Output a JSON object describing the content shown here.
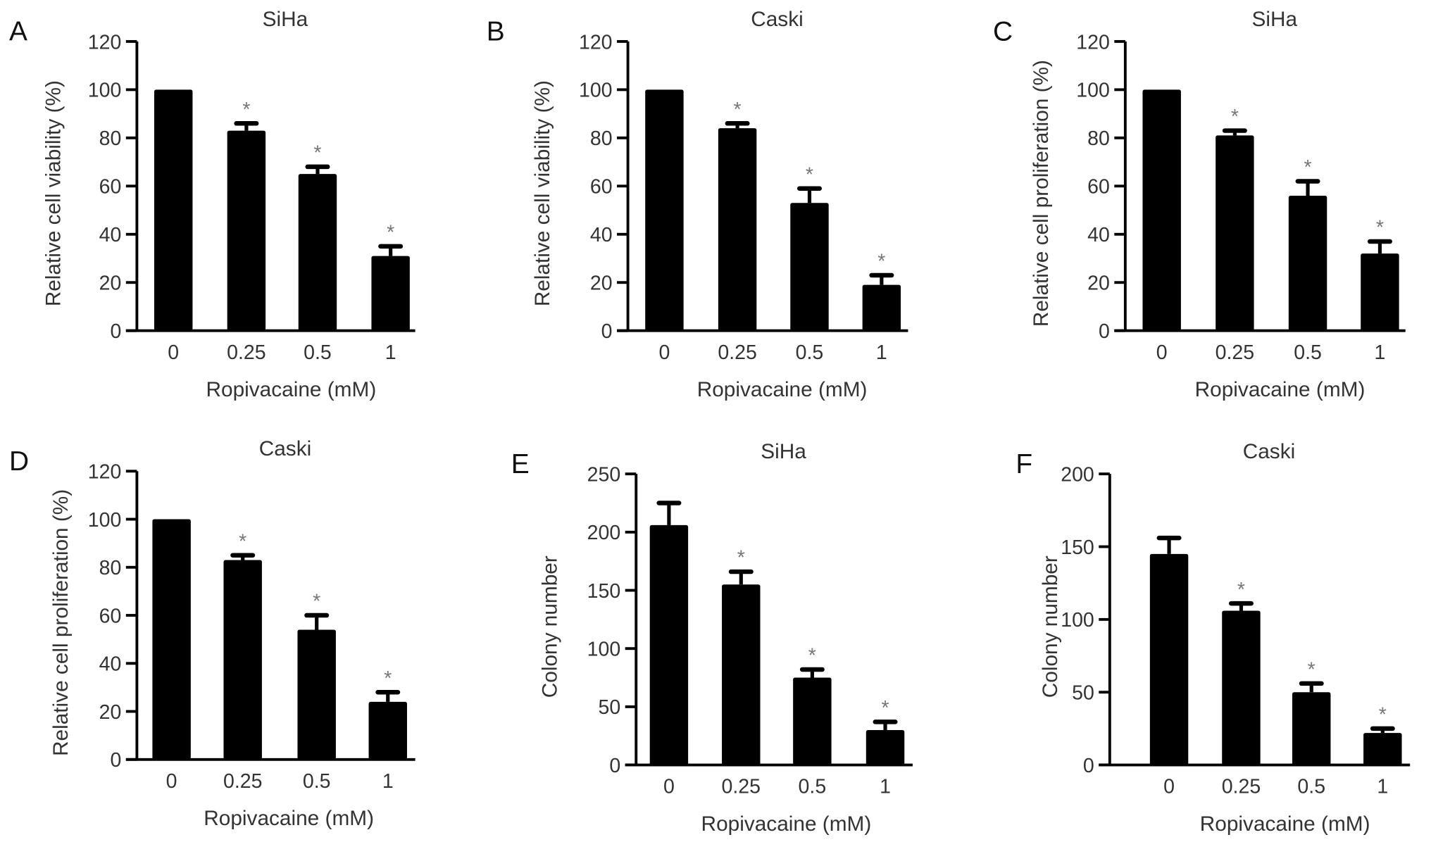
{
  "chart_data": [
    {
      "type": "bar",
      "panel": "A",
      "title": "SiHa",
      "xlabel": "Ropivacaine (mM)",
      "ylabel": "Relative cell viability (%)",
      "categories": [
        "0",
        "0.25",
        "0.5",
        "1"
      ],
      "values": [
        100,
        83,
        65,
        31
      ],
      "errors": [
        0,
        3,
        3,
        4
      ],
      "significance": [
        "",
        "*",
        "*",
        "*"
      ],
      "ylim": [
        0,
        120
      ],
      "yticks": [
        "0",
        "20",
        "40",
        "60",
        "80",
        "100",
        "120"
      ]
    },
    {
      "type": "bar",
      "panel": "B",
      "title": "Caski",
      "xlabel": "Ropivacaine (mM)",
      "ylabel": "Relative cell viability (%)",
      "categories": [
        "0",
        "0.25",
        "0.5",
        "1"
      ],
      "values": [
        100,
        84,
        53,
        19
      ],
      "errors": [
        0,
        2,
        6,
        4
      ],
      "significance": [
        "",
        "*",
        "*",
        "*"
      ],
      "ylim": [
        0,
        120
      ],
      "yticks": [
        "0",
        "20",
        "40",
        "60",
        "80",
        "100",
        "120"
      ]
    },
    {
      "type": "bar",
      "panel": "C",
      "title": "SiHa",
      "xlabel": "Ropivacaine (mM)",
      "ylabel": "Relative cell proliferation (%)",
      "categories": [
        "0",
        "0.25",
        "0.5",
        "1"
      ],
      "values": [
        100,
        81,
        56,
        32
      ],
      "errors": [
        0,
        2,
        6,
        5
      ],
      "significance": [
        "",
        "*",
        "*",
        "*"
      ],
      "ylim": [
        0,
        120
      ],
      "yticks": [
        "0",
        "20",
        "40",
        "60",
        "80",
        "100",
        "120"
      ]
    },
    {
      "type": "bar",
      "panel": "D",
      "title": "Caski",
      "xlabel": "Ropivacaine (mM)",
      "ylabel": "Relative cell proliferation (%)",
      "categories": [
        "0",
        "0.25",
        "0.5",
        "1"
      ],
      "values": [
        100,
        83,
        54,
        24
      ],
      "errors": [
        0,
        2,
        6,
        4
      ],
      "significance": [
        "",
        "*",
        "*",
        "*"
      ],
      "ylim": [
        0,
        120
      ],
      "yticks": [
        "0",
        "20",
        "40",
        "60",
        "80",
        "100",
        "120"
      ]
    },
    {
      "type": "bar",
      "panel": "E",
      "title": "SiHa",
      "xlabel": "Ropivacaine (mM)",
      "ylabel": "Colony number",
      "categories": [
        "0",
        "0.25",
        "0.5",
        "1"
      ],
      "values": [
        206,
        155,
        75,
        30
      ],
      "errors": [
        19,
        11,
        7,
        7
      ],
      "significance": [
        "",
        "*",
        "*",
        "*"
      ],
      "ylim": [
        0,
        250
      ],
      "yticks": [
        "0",
        "50",
        "100",
        "150",
        "200",
        "250"
      ]
    },
    {
      "type": "bar",
      "panel": "F",
      "title": "Caski",
      "xlabel": "Ropivacaine (mM)",
      "ylabel": "Colony number",
      "categories": [
        "0",
        "0.25",
        "0.5",
        "1"
      ],
      "values": [
        145,
        106,
        50,
        22
      ],
      "errors": [
        11,
        5,
        6,
        3
      ],
      "significance": [
        "",
        "*",
        "*",
        "*"
      ],
      "ylim": [
        0,
        200
      ],
      "yticks": [
        "0",
        "50",
        "100",
        "150",
        "200"
      ]
    }
  ],
  "colors": {
    "bar": "#000000",
    "axis": "#000000",
    "star": "#777777"
  }
}
